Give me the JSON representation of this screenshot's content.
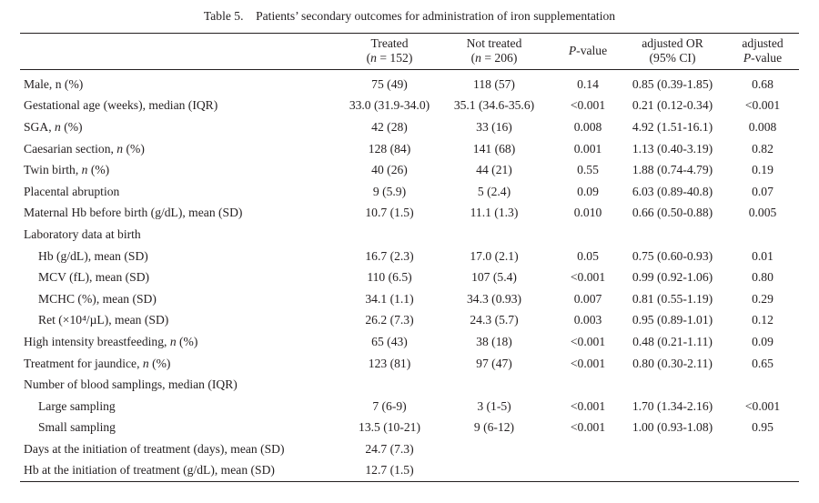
{
  "caption": "Table 5. Patients’ secondary outcomes for administration of iron supplementation",
  "headers": {
    "treated": "Treated",
    "treated_n": "(n = 152)",
    "not_treated": "Not treated",
    "not_treated_n": "(n = 206)",
    "pvalue": "P-value",
    "or_line1": "adjusted OR",
    "or_line2": "(95% CI)",
    "adjp_line1": "adjusted",
    "adjp_line2": "P-value"
  },
  "rows": [
    {
      "label": "Male, n (%)",
      "treated": "75 (49)",
      "not_treated": "118 (57)",
      "p": "0.14",
      "or": "0.85 (0.39-1.85)",
      "adj_p": "0.68",
      "indent": false
    },
    {
      "label": "Gestational age (weeks), median (IQR)",
      "treated": "33.0 (31.9-34.0)",
      "not_treated": "35.1 (34.6-35.6)",
      "p": "<0.001",
      "or": "0.21 (0.12-0.34)",
      "adj_p": "<0.001",
      "indent": false
    },
    {
      "label": "SGA, n (%)",
      "treated": "42 (28)",
      "not_treated": "33 (16)",
      "p": "0.008",
      "or": "4.92 (1.51-16.1)",
      "adj_p": "0.008",
      "indent": false
    },
    {
      "label": "Caesarian section, n (%)",
      "treated": "128 (84)",
      "not_treated": "141 (68)",
      "p": "0.001",
      "or": "1.13 (0.40-3.19)",
      "adj_p": "0.82",
      "indent": false
    },
    {
      "label": "Twin birth, n (%)",
      "treated": "40 (26)",
      "not_treated": "44 (21)",
      "p": "0.55",
      "or": "1.88 (0.74-4.79)",
      "adj_p": "0.19",
      "indent": false
    },
    {
      "label": "Placental abruption",
      "treated": "9 (5.9)",
      "not_treated": "5 (2.4)",
      "p": "0.09",
      "or": "6.03 (0.89-40.8)",
      "adj_p": "0.07",
      "indent": false
    },
    {
      "label": "Maternal Hb before birth (g/dL), mean (SD)",
      "treated": "10.7 (1.5)",
      "not_treated": "11.1 (1.3)",
      "p": "0.010",
      "or": "0.66 (0.50-0.88)",
      "adj_p": "0.005",
      "indent": false
    },
    {
      "label": "Laboratory data at birth",
      "treated": "",
      "not_treated": "",
      "p": "",
      "or": "",
      "adj_p": "",
      "indent": false
    },
    {
      "label": "Hb (g/dL), mean (SD)",
      "treated": "16.7 (2.3)",
      "not_treated": "17.0 (2.1)",
      "p": "0.05",
      "or": "0.75 (0.60-0.93)",
      "adj_p": "0.01",
      "indent": true
    },
    {
      "label": "MCV (fL), mean (SD)",
      "treated": "110 (6.5)",
      "not_treated": "107 (5.4)",
      "p": "<0.001",
      "or": "0.99 (0.92-1.06)",
      "adj_p": "0.80",
      "indent": true
    },
    {
      "label": "MCHC (%), mean (SD)",
      "treated": "34.1 (1.1)",
      "not_treated": "34.3 (0.93)",
      "p": "0.007",
      "or": "0.81 (0.55-1.19)",
      "adj_p": "0.29",
      "indent": true
    },
    {
      "label": "Ret (×10⁴/µL), mean (SD)",
      "treated": "26.2 (7.3)",
      "not_treated": "24.3 (5.7)",
      "p": "0.003",
      "or": "0.95 (0.89-1.01)",
      "adj_p": "0.12",
      "indent": true
    },
    {
      "label": "High intensity breastfeeding, n (%)",
      "treated": "65 (43)",
      "not_treated": "38 (18)",
      "p": "<0.001",
      "or": "0.48 (0.21-1.11)",
      "adj_p": "0.09",
      "indent": false
    },
    {
      "label": "Treatment for jaundice, n (%)",
      "treated": "123 (81)",
      "not_treated": "97 (47)",
      "p": "<0.001",
      "or": "0.80 (0.30-2.11)",
      "adj_p": "0.65",
      "indent": false
    },
    {
      "label": "Number of blood samplings, median (IQR)",
      "treated": "",
      "not_treated": "",
      "p": "",
      "or": "",
      "adj_p": "",
      "indent": false
    },
    {
      "label": "Large sampling",
      "treated": "7 (6-9)",
      "not_treated": "3 (1-5)",
      "p": "<0.001",
      "or": "1.70 (1.34-2.16)",
      "adj_p": "<0.001",
      "indent": true
    },
    {
      "label": "Small sampling",
      "treated": "13.5 (10-21)",
      "not_treated": "9 (6-12)",
      "p": "<0.001",
      "or": "1.00 (0.93-1.08)",
      "adj_p": "0.95",
      "indent": true
    },
    {
      "label": "Days at the initiation of treatment (days), mean (SD)",
      "treated": "24.7 (7.3)",
      "not_treated": "",
      "p": "",
      "or": "",
      "adj_p": "",
      "indent": false
    },
    {
      "label": "Hb at the initiation of treatment (g/dL), mean (SD)",
      "treated": "12.7 (1.5)",
      "not_treated": "",
      "p": "",
      "or": "",
      "adj_p": "",
      "indent": false
    }
  ]
}
